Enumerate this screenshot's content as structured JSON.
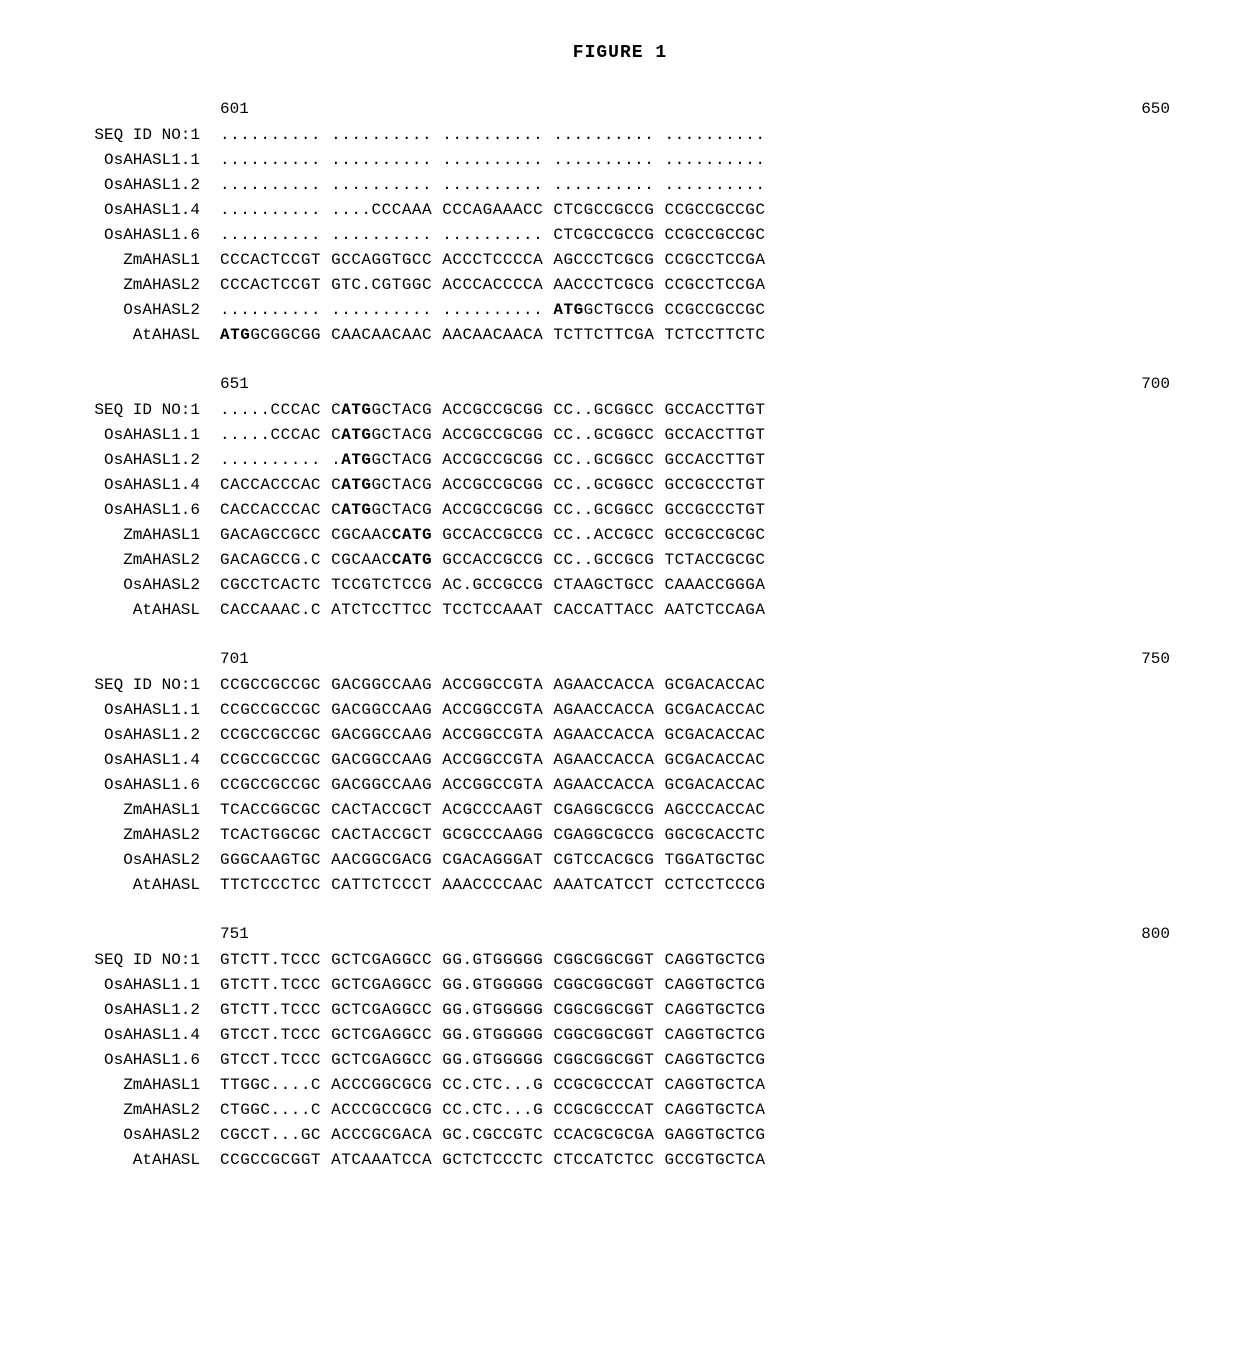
{
  "title": "FIGURE 1",
  "font": {
    "family": "Courier New",
    "size_pt": 16,
    "title_size_pt": 18,
    "color": "#000000",
    "background": "#ffffff"
  },
  "blocks": [
    {
      "pos_start": "601",
      "pos_end": "650",
      "rows": [
        {
          "label": "SEQ ID NO:1",
          "seq": ".......... .......... .......... .......... .........."
        },
        {
          "label": "OsAHASL1.1",
          "seq": ".......... .......... .......... .......... .........."
        },
        {
          "label": "OsAHASL1.2",
          "seq": ".......... .......... .......... .......... .........."
        },
        {
          "label": "OsAHASL1.4",
          "seq": ".......... ....CCCAAA CCCAGAAACC CTCGCCGCCG CCGCCGCCGC"
        },
        {
          "label": "OsAHASL1.6",
          "seq": ".......... .......... .......... CTCGCCGCCG CCGCCGCCGC"
        },
        {
          "label": "ZmAHASL1",
          "seq": "CCCACTCCGT GCCAGGTGCC ACCCTCCCCA AGCCCTCGCG CCGCCTCCGA"
        },
        {
          "label": "ZmAHASL2",
          "seq": "CCCACTCCGT GTC.CGTGGC ACCCACCCCA AACCCTCGCG CCGCCTCCGA"
        },
        {
          "label": "OsAHASL2",
          "seq": ".......... .......... .......... ATGGCTGCCG CCGCCGCCGC",
          "bold_ranges": [
            [
              33,
              36
            ]
          ]
        },
        {
          "label": "AtAHASL",
          "seq": "ATGGCGGCGG CAACAACAAC AACAACAACA TCTTCTTCGA TCTCCTTCTC",
          "bold_ranges": [
            [
              0,
              3
            ]
          ]
        }
      ]
    },
    {
      "pos_start": "651",
      "pos_end": "700",
      "rows": [
        {
          "label": "SEQ ID NO:1",
          "seq": ".....CCCAC CATGGCTACG ACCGCCGCGG CC..GCGGCC GCCACCTTGT",
          "bold_ranges": [
            [
              12,
              15
            ]
          ]
        },
        {
          "label": "OsAHASL1.1",
          "seq": ".....CCCAC CATGGCTACG ACCGCCGCGG CC..GCGGCC GCCACCTTGT",
          "bold_ranges": [
            [
              12,
              15
            ]
          ]
        },
        {
          "label": "OsAHASL1.2",
          "seq": ".......... .ATGGCTACG ACCGCCGCGG CC..GCGGCC GCCACCTTGT",
          "bold_ranges": [
            [
              12,
              15
            ]
          ]
        },
        {
          "label": "OsAHASL1.4",
          "seq": "CACCACCCAC CATGGCTACG ACCGCCGCGG CC..GCGGCC GCCGCCCTGT",
          "bold_ranges": [
            [
              12,
              15
            ]
          ]
        },
        {
          "label": "OsAHASL1.6",
          "seq": "CACCACCCAC CATGGCTACG ACCGCCGCGG CC..GCGGCC GCCGCCCTGT",
          "bold_ranges": [
            [
              12,
              15
            ]
          ]
        },
        {
          "label": "ZmAHASL1",
          "seq": "GACAGCCGCC CGCAACCATG GCCACCGCCG CC..ACCGCC GCCGCCGCGC",
          "bold_ranges": [
            [
              17,
              21
            ]
          ]
        },
        {
          "label": "ZmAHASL2",
          "seq": "GACAGCCG.C CGCAACCATG GCCACCGCCG CC..GCCGCG TCTACCGCGC",
          "bold_ranges": [
            [
              17,
              21
            ]
          ]
        },
        {
          "label": "OsAHASL2",
          "seq": "CGCCTCACTC TCCGTCTCCG AC.GCCGCCG CTAAGCTGCC CAAACCGGGA"
        },
        {
          "label": "AtAHASL",
          "seq": "CACCAAAC.C ATCTCCTTCC TCCTCCAAAT CACCATTACC AATCTCCAGA"
        }
      ]
    },
    {
      "pos_start": "701",
      "pos_end": "750",
      "rows": [
        {
          "label": "SEQ ID NO:1",
          "seq": "CCGCCGCCGC GACGGCCAAG ACCGGCCGTA AGAACCACCA GCGACACCAC"
        },
        {
          "label": "OsAHASL1.1",
          "seq": "CCGCCGCCGC GACGGCCAAG ACCGGCCGTA AGAACCACCA GCGACACCAC"
        },
        {
          "label": "OsAHASL1.2",
          "seq": "CCGCCGCCGC GACGGCCAAG ACCGGCCGTA AGAACCACCA GCGACACCAC"
        },
        {
          "label": "OsAHASL1.4",
          "seq": "CCGCCGCCGC GACGGCCAAG ACCGGCCGTA AGAACCACCA GCGACACCAC"
        },
        {
          "label": "OsAHASL1.6",
          "seq": "CCGCCGCCGC GACGGCCAAG ACCGGCCGTA AGAACCACCA GCGACACCAC"
        },
        {
          "label": "ZmAHASL1",
          "seq": "TCACCGGCGC CACTACCGCT ACGCCCAAGT CGAGGCGCCG AGCCCACCAC"
        },
        {
          "label": "ZmAHASL2",
          "seq": "TCACTGGCGC CACTACCGCT GCGCCCAAGG CGAGGCGCCG GGCGCACCTC"
        },
        {
          "label": "OsAHASL2",
          "seq": "GGGCAAGTGC AACGGCGACG CGACAGGGAT CGTCCACGCG TGGATGCTGC"
        },
        {
          "label": "AtAHASL",
          "seq": "TTCTCCCTCC CATTCTCCCT AAACCCCAAC AAATCATCCT CCTCCTCCCG"
        }
      ]
    },
    {
      "pos_start": "751",
      "pos_end": "800",
      "rows": [
        {
          "label": "SEQ ID NO:1",
          "seq": "GTCTT.TCCC GCTCGAGGCC GG.GTGGGGG CGGCGGCGGT CAGGTGCTCG"
        },
        {
          "label": "OsAHASL1.1",
          "seq": "GTCTT.TCCC GCTCGAGGCC GG.GTGGGGG CGGCGGCGGT CAGGTGCTCG"
        },
        {
          "label": "OsAHASL1.2",
          "seq": "GTCTT.TCCC GCTCGAGGCC GG.GTGGGGG CGGCGGCGGT CAGGTGCTCG"
        },
        {
          "label": "OsAHASL1.4",
          "seq": "GTCCT.TCCC GCTCGAGGCC GG.GTGGGGG CGGCGGCGGT CAGGTGCTCG"
        },
        {
          "label": "OsAHASL1.6",
          "seq": "GTCCT.TCCC GCTCGAGGCC GG.GTGGGGG CGGCGGCGGT CAGGTGCTCG"
        },
        {
          "label": "ZmAHASL1",
          "seq": "TTGGC....C ACCCGGCGCG CC.CTC...G CCGCGCCCAT CAGGTGCTCA"
        },
        {
          "label": "ZmAHASL2",
          "seq": "CTGGC....C ACCCGCCGCG CC.CTC...G CCGCGCCCAT CAGGTGCTCA"
        },
        {
          "label": "OsAHASL2",
          "seq": "CGCCT...GC ACCCGCGACA GC.CGCCGTC CCACGCGCGA GAGGTGCTCG"
        },
        {
          "label": "AtAHASL",
          "seq": "CCGCCGCGGT ATCAAATCCA GCTCTCCCTC CTCCATCTCC GCCGTGCTCA"
        }
      ]
    }
  ]
}
